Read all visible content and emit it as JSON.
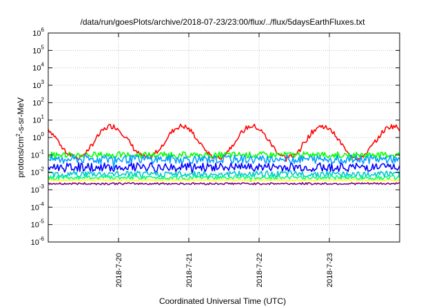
{
  "chart_data": {
    "type": "line",
    "title": "/data/run/goesPlots/archive/2018-07-23/23:00/flux/../flux/5daysEarthFluxes.txt",
    "xlabel": "Coordinated Universal Time (UTC)",
    "ylabel_base": "protons/cm",
    "ylabel_sup": "2",
    "ylabel_rest": "-s-sr-MeV",
    "yscale": "log",
    "ylim_exp": [
      -6,
      6
    ],
    "y_ticks": [
      {
        "base": "10",
        "exp": "6"
      },
      {
        "base": "10",
        "exp": "5"
      },
      {
        "base": "10",
        "exp": "4"
      },
      {
        "base": "10",
        "exp": "3"
      },
      {
        "base": "10",
        "exp": "2"
      },
      {
        "base": "10",
        "exp": "1"
      },
      {
        "base": "10",
        "exp": "0"
      },
      {
        "base": "10",
        "exp": "-1"
      },
      {
        "base": "10",
        "exp": "-2"
      },
      {
        "base": "10",
        "exp": "-3"
      },
      {
        "base": "10",
        "exp": "-4"
      },
      {
        "base": "10",
        "exp": "-5"
      },
      {
        "base": "10",
        "exp": "-6"
      }
    ],
    "x_ticks": [
      "2018-7-20",
      "2018-7-21",
      "2018-7-22",
      "2018-7-23"
    ],
    "x_range_days": [
      19.0,
      24.0
    ],
    "grid": true,
    "series": [
      {
        "color": "#ff0000",
        "base": 0.05,
        "amp": 0.9,
        "period": 1.0,
        "noise": 0.15
      },
      {
        "color": "#00ff00",
        "base": -1.0,
        "amp": 0.0,
        "noise": 0.18
      },
      {
        "color": "#00a0ff",
        "base": -1.25,
        "amp": 0.0,
        "noise": 0.25
      },
      {
        "color": "#0000ff",
        "base": -1.7,
        "amp": 0.0,
        "noise": 0.25
      },
      {
        "color": "#00c8c8",
        "base": -2.1,
        "amp": 0.0,
        "noise": 0.18
      },
      {
        "color": "#00ff80",
        "base": -2.3,
        "amp": 0.0,
        "noise": 0.12
      },
      {
        "color": "#ffff00",
        "base": -2.45,
        "amp": 0.0,
        "noise": 0.04
      },
      {
        "color": "#800080",
        "base": -2.65,
        "amp": 0.0,
        "noise": 0.06
      }
    ]
  }
}
